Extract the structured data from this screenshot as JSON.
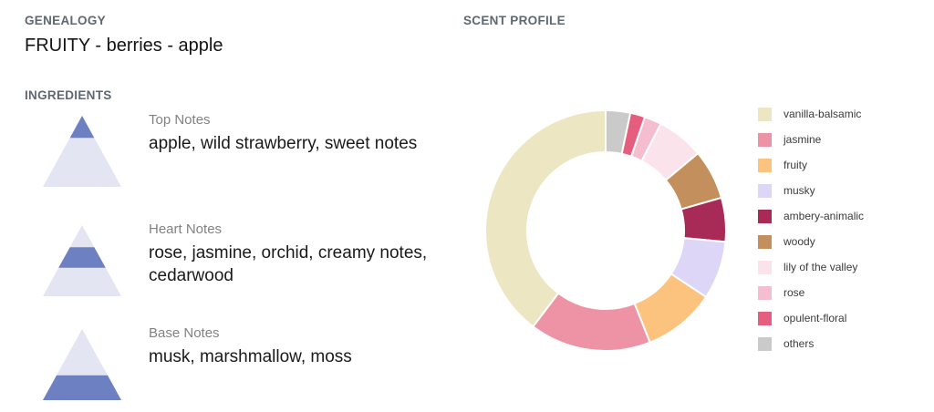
{
  "genealogy": {
    "label": "GENEALOGY",
    "value": "FRUITY - berries - apple"
  },
  "ingredients": {
    "label": "INGREDIENTS",
    "levels": [
      {
        "label": "Top Notes",
        "value": "apple, wild strawberry, sweet notes"
      },
      {
        "label": "Heart Notes",
        "value": "rose, jasmine, orchid, creamy notes, cedarwood"
      },
      {
        "label": "Base Notes",
        "value": "musk, marshmallow, moss"
      }
    ]
  },
  "pyramid": {
    "dark_color": "#6c80c2",
    "light_color": "#e3e5f3"
  },
  "scent_profile": {
    "label": "SCENT PROFILE"
  },
  "chart_data": {
    "type": "pie",
    "subtype": "donut",
    "title": "SCENT PROFILE",
    "legend_position": "right",
    "start_angle": "12 o'clock",
    "clockwise_order_from_top": [
      "others",
      "opulent-floral",
      "rose",
      "lily of the valley",
      "woody",
      "ambery-animalic",
      "musky",
      "fruity",
      "jasmine",
      "vanilla-balsamic"
    ],
    "slices": [
      {
        "label": "vanilla-balsamic",
        "value": 39.7,
        "color": "#ece6c3"
      },
      {
        "label": "jasmine",
        "value": 16.3,
        "color": "#ee92a5"
      },
      {
        "label": "fruity",
        "value": 9.7,
        "color": "#fcc37f"
      },
      {
        "label": "musky",
        "value": 7.8,
        "color": "#ded6f7"
      },
      {
        "label": "ambery-animalic",
        "value": 5.9,
        "color": "#a72b56"
      },
      {
        "label": "woody",
        "value": 6.7,
        "color": "#c3905d"
      },
      {
        "label": "lily of the valley",
        "value": 6.3,
        "color": "#fbe3eb"
      },
      {
        "label": "rose",
        "value": 2.3,
        "color": "#f4bece"
      },
      {
        "label": "opulent-floral",
        "value": 2.0,
        "color": "#e55d7f"
      },
      {
        "label": "others",
        "value": 3.3,
        "color": "#cacaca"
      }
    ]
  }
}
